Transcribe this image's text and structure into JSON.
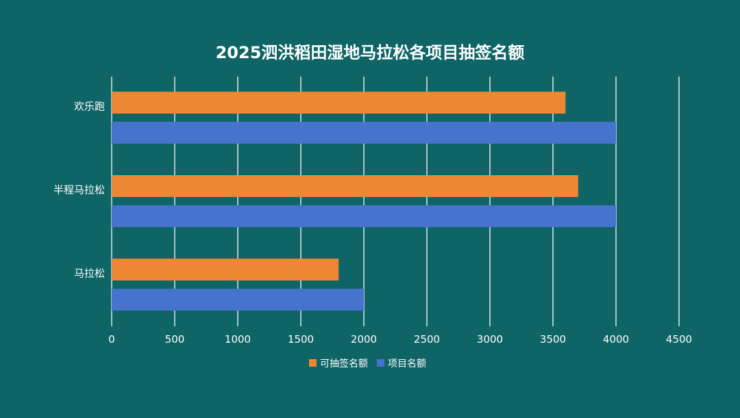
{
  "chart_data": {
    "type": "bar",
    "orientation": "horizontal",
    "title": "2025泗洪稻田湿地马拉松各项目抽签名额",
    "categories": [
      "欢乐跑",
      "半程马拉松",
      "马拉松"
    ],
    "series": [
      {
        "name": "可抽签名额",
        "color": "#ed8733",
        "values": [
          3600,
          3700,
          1800
        ]
      },
      {
        "name": "项目名额",
        "color": "#4673cc",
        "values": [
          4000,
          4000,
          2000
        ]
      }
    ],
    "xlim": [
      0,
      4500
    ],
    "xticks": [
      0,
      500,
      1000,
      1500,
      2000,
      2500,
      3000,
      3500,
      4000,
      4500
    ],
    "xlabel": "",
    "ylabel": "",
    "grid": "vertical",
    "legend_position": "bottom"
  },
  "colors": {
    "background": "#0f6466",
    "text": "#ffffff",
    "gridline": "#ffffff"
  }
}
